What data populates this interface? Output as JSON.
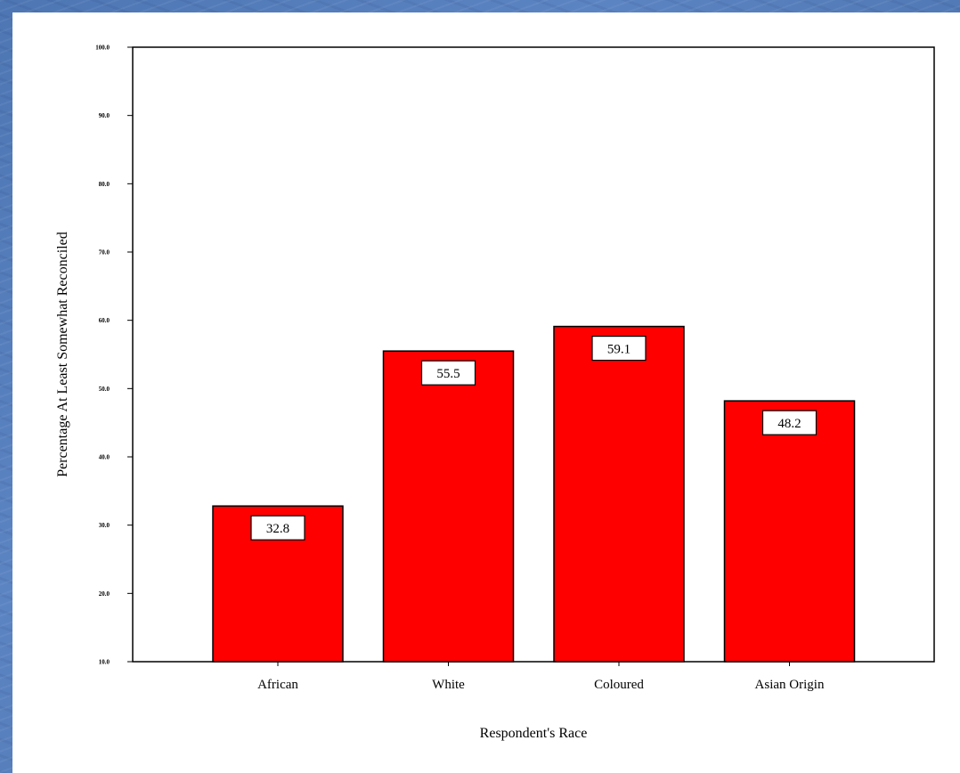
{
  "chart_data": {
    "type": "bar",
    "categories": [
      "African",
      "White",
      "Coloured",
      "Asian Origin"
    ],
    "values": [
      32.8,
      55.5,
      59.1,
      48.2
    ],
    "data_labels": [
      "32.8",
      "55.5",
      "59.1",
      "48.2"
    ],
    "title": "",
    "xlabel": "Respondent's Race",
    "ylabel": "Percentage At Least Somewhat Reconciled",
    "ylim": [
      10,
      100
    ],
    "yticks": [
      10,
      20,
      30,
      40,
      50,
      60,
      70,
      80,
      90,
      100
    ],
    "ytick_labels": [
      "10.0",
      "20.0",
      "30.0",
      "40.0",
      "50.0",
      "60.0",
      "70.0",
      "80.0",
      "90.0",
      "100.0"
    ],
    "grid": false,
    "bar_color": "#ff0000"
  }
}
